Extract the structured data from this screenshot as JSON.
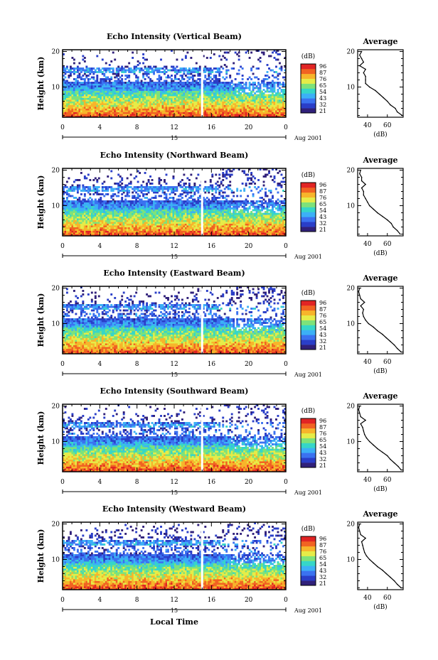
{
  "figure": {
    "x_axis_title": "Local Time",
    "date_marker": "15",
    "date_label": "Aug 2001"
  },
  "colorbar": {
    "unit_label": "(dB)",
    "tick_labels": [
      "96",
      "87",
      "76",
      "65",
      "54",
      "43",
      "32",
      "21"
    ],
    "colors": [
      "#30207a",
      "#2a3ec8",
      "#3b72f0",
      "#3cb0f6",
      "#36d6c8",
      "#7ee27a",
      "#e6ec48",
      "#f7b52b",
      "#f16322",
      "#e12424"
    ]
  },
  "chart_data": [
    {
      "type": "heatmap",
      "title": "Echo Intensity (Vertical Beam)",
      "xlabel": "Local Time",
      "ylabel": "Height (km)",
      "x_ticks": [
        "0",
        "4",
        "8",
        "12",
        "16",
        "20",
        "0"
      ],
      "y_ticks": [
        "10",
        "20"
      ],
      "xlim": [
        0,
        24
      ],
      "ylim": [
        1.5,
        20.5
      ],
      "color_scale_db": [
        21,
        96
      ],
      "gap_time_h": 15,
      "average_profile": {
        "title": "Average",
        "xlabel": "(dB)",
        "x_ticks": [
          "40",
          "60"
        ],
        "xlim": [
          30,
          76
        ],
        "heights_km": [
          2,
          3,
          4,
          5,
          6,
          7,
          8,
          9,
          10,
          11,
          12,
          13,
          14,
          15,
          16,
          17,
          18,
          19,
          20
        ],
        "values_db": [
          75,
          70,
          68,
          63,
          60,
          56,
          52,
          48,
          42,
          38,
          38,
          38,
          36,
          38,
          32,
          36,
          34,
          32,
          34
        ]
      }
    },
    {
      "type": "heatmap",
      "title": "Echo Intensity (Northward Beam)",
      "xlabel": "Local Time",
      "ylabel": "Height (km)",
      "x_ticks": [
        "0",
        "4",
        "8",
        "12",
        "16",
        "20",
        "0"
      ],
      "y_ticks": [
        "10",
        "20"
      ],
      "xlim": [
        0,
        24
      ],
      "ylim": [
        1.5,
        20.5
      ],
      "color_scale_db": [
        21,
        96
      ],
      "gap_time_h": 15,
      "average_profile": {
        "title": "Average",
        "xlabel": "(dB)",
        "x_ticks": [
          "40",
          "60"
        ],
        "xlim": [
          30,
          76
        ],
        "heights_km": [
          2,
          3,
          4,
          5,
          6,
          7,
          8,
          9,
          10,
          11,
          12,
          13,
          14,
          15,
          16,
          17,
          18,
          19,
          20
        ],
        "values_db": [
          73,
          70,
          66,
          64,
          60,
          55,
          50,
          46,
          42,
          40,
          38,
          36,
          36,
          34,
          38,
          34,
          34,
          32,
          33
        ]
      }
    },
    {
      "type": "heatmap",
      "title": "Echo Intensity (Eastward Beam)",
      "xlabel": "Local Time",
      "ylabel": "Height (km)",
      "x_ticks": [
        "0",
        "4",
        "8",
        "12",
        "16",
        "20",
        "0"
      ],
      "y_ticks": [
        "10",
        "20"
      ],
      "xlim": [
        0,
        24
      ],
      "ylim": [
        1.5,
        20.5
      ],
      "color_scale_db": [
        21,
        96
      ],
      "gap_time_h": 15,
      "average_profile": {
        "title": "Average",
        "xlabel": "(dB)",
        "x_ticks": [
          "40",
          "60"
        ],
        "xlim": [
          30,
          76
        ],
        "heights_km": [
          2,
          3,
          4,
          5,
          6,
          7,
          8,
          9,
          10,
          11,
          12,
          13,
          14,
          15,
          16,
          17,
          18,
          19,
          20
        ],
        "values_db": [
          74,
          70,
          67,
          63,
          59,
          55,
          50,
          46,
          41,
          38,
          36,
          35,
          36,
          33,
          37,
          33,
          32,
          31,
          32
        ]
      }
    },
    {
      "type": "heatmap",
      "title": "Echo Intensity (Southward Beam)",
      "xlabel": "Local Time",
      "ylabel": "Height (km)",
      "x_ticks": [
        "0",
        "4",
        "8",
        "12",
        "16",
        "20",
        "0"
      ],
      "y_ticks": [
        "10",
        "20"
      ],
      "xlim": [
        0,
        24
      ],
      "ylim": [
        1.5,
        20.5
      ],
      "color_scale_db": [
        21,
        96
      ],
      "gap_time_h": 15,
      "average_profile": {
        "title": "Average",
        "xlabel": "(dB)",
        "x_ticks": [
          "40",
          "60"
        ],
        "xlim": [
          30,
          76
        ],
        "heights_km": [
          2,
          3,
          4,
          5,
          6,
          7,
          8,
          9,
          10,
          11,
          12,
          13,
          14,
          15,
          16,
          17,
          18,
          19,
          20
        ],
        "values_db": [
          74,
          71,
          67,
          63,
          60,
          55,
          50,
          46,
          42,
          39,
          37,
          36,
          35,
          33,
          38,
          33,
          32,
          31,
          32
        ]
      }
    },
    {
      "type": "heatmap",
      "title": "Echo Intensity (Westward Beam)",
      "xlabel": "Local Time",
      "ylabel": "Height (km)",
      "x_ticks": [
        "0",
        "4",
        "8",
        "12",
        "16",
        "20",
        "0"
      ],
      "y_ticks": [
        "10",
        "20"
      ],
      "xlim": [
        0,
        24
      ],
      "ylim": [
        1.5,
        20.5
      ],
      "color_scale_db": [
        21,
        96
      ],
      "gap_time_h": 15,
      "average_profile": {
        "title": "Average",
        "xlabel": "(dB)",
        "x_ticks": [
          "40",
          "60"
        ],
        "xlim": [
          30,
          76
        ],
        "heights_km": [
          2,
          3,
          4,
          5,
          6,
          7,
          8,
          9,
          10,
          11,
          12,
          13,
          14,
          15,
          16,
          17,
          18,
          19,
          20
        ],
        "values_db": [
          74,
          70,
          67,
          63,
          59,
          55,
          50,
          46,
          42,
          39,
          37,
          36,
          35,
          34,
          38,
          33,
          32,
          31,
          32
        ]
      }
    }
  ]
}
